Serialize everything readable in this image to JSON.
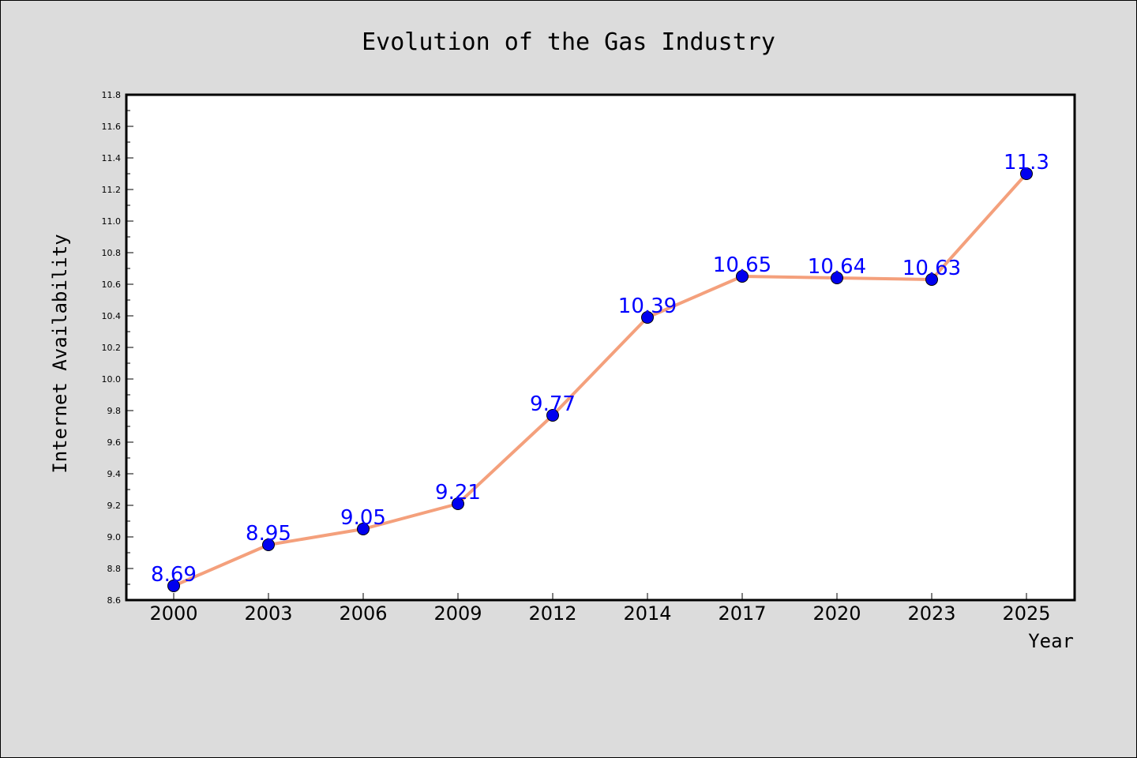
{
  "chart_data": {
    "type": "line",
    "title": "Evolution of the Gas Industry",
    "xlabel": "Year",
    "ylabel": "Internet Availability",
    "categories": [
      "2000",
      "2003",
      "2006",
      "2009",
      "2012",
      "2014",
      "2017",
      "2020",
      "2023",
      "2025"
    ],
    "series": [
      {
        "values": [
          8.69,
          8.95,
          9.05,
          9.21,
          9.77,
          10.39,
          10.65,
          10.64,
          10.63,
          11.3
        ],
        "line_color": "#f4a07c",
        "marker_color": "#0000ee"
      }
    ],
    "data_labels": [
      "8.69",
      "8.95",
      "9.05",
      "9.21",
      "9.77",
      "10.39",
      "10.65",
      "10.64",
      "10.63",
      "11.3"
    ],
    "ylim": [
      8.6,
      11.8
    ],
    "yticks": [
      "8.6",
      "8.8",
      "9.0",
      "9.2",
      "9.4",
      "9.6",
      "9.8",
      "10.0",
      "10.2",
      "10.4",
      "10.6",
      "10.8",
      "11.0",
      "11.2",
      "11.4",
      "11.6",
      "11.8"
    ],
    "grid": false,
    "legend": "none"
  }
}
